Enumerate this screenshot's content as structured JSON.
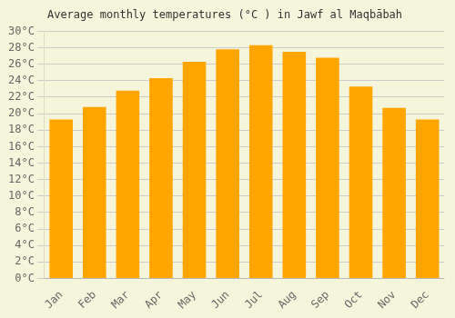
{
  "chart_data": {
    "type": "bar",
    "title": "Average monthly temperatures (°C ) in Jawf al Maqbābah",
    "categories": [
      "Jan",
      "Feb",
      "Mar",
      "Apr",
      "May",
      "Jun",
      "Jul",
      "Aug",
      "Sep",
      "Oct",
      "Nov",
      "Dec"
    ],
    "values": [
      19.3,
      20.8,
      22.8,
      24.3,
      26.3,
      27.8,
      28.3,
      27.5,
      26.8,
      23.3,
      20.7,
      19.3
    ],
    "color": "#FFA500",
    "ylim": [
      0,
      30
    ],
    "yticks": [
      {
        "value": 0,
        "label": "0°C"
      },
      {
        "value": 2,
        "label": "2°C"
      },
      {
        "value": 4,
        "label": "4°C"
      },
      {
        "value": 6,
        "label": "6°C"
      },
      {
        "value": 8,
        "label": "8°C"
      },
      {
        "value": 10,
        "label": "10°C"
      },
      {
        "value": 12,
        "label": "12°C"
      },
      {
        "value": 14,
        "label": "14°C"
      },
      {
        "value": 16,
        "label": "16°C"
      },
      {
        "value": 18,
        "label": "18°C"
      },
      {
        "value": 20,
        "label": "20°C"
      },
      {
        "value": 22,
        "label": "22°C"
      },
      {
        "value": 24,
        "label": "24°C"
      },
      {
        "value": 26,
        "label": "26°C"
      },
      {
        "value": 28,
        "label": "28°C"
      },
      {
        "value": 30,
        "label": "30°C"
      }
    ],
    "grid": true
  }
}
